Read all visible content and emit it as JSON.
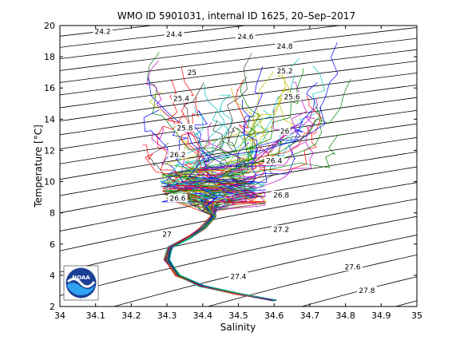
{
  "chart_data": {
    "type": "line",
    "title": "WMO ID 5901031, internal ID 1625, 20–Sep–2017",
    "xlabel": "Salinity",
    "ylabel": "Temperature [°C]",
    "xlim": [
      34,
      35
    ],
    "ylim": [
      2,
      20
    ],
    "xticks": [
      "34",
      "34.1",
      "34.2",
      "34.3",
      "34.4",
      "34.5",
      "34.6",
      "34.7",
      "34.8",
      "34.9",
      "35"
    ],
    "yticks": [
      "2",
      "4",
      "6",
      "8",
      "10",
      "12",
      "14",
      "16",
      "18",
      "20"
    ],
    "grid": false,
    "density_contours": {
      "line_color": "#000000",
      "labels": [
        {
          "text": "24.2",
          "s": 34.12,
          "t": 19.6
        },
        {
          "text": "24.4",
          "s": 34.32,
          "t": 19.4
        },
        {
          "text": "24.6",
          "s": 34.52,
          "t": 19.25
        },
        {
          "text": "24.8",
          "s": 34.63,
          "t": 18.65
        },
        {
          "text": "25",
          "s": 34.37,
          "t": 16.95
        },
        {
          "text": "25.2",
          "s": 34.63,
          "t": 17.05
        },
        {
          "text": "25.4",
          "s": 34.34,
          "t": 15.3
        },
        {
          "text": "25.6",
          "s": 34.65,
          "t": 15.4
        },
        {
          "text": "25.8",
          "s": 34.35,
          "t": 13.4
        },
        {
          "text": "26",
          "s": 34.63,
          "t": 13.2
        },
        {
          "text": "26.2",
          "s": 34.33,
          "t": 11.7
        },
        {
          "text": "26.4",
          "s": 34.6,
          "t": 11.3
        },
        {
          "text": "26.6",
          "s": 34.33,
          "t": 8.9
        },
        {
          "text": "26.8",
          "s": 34.62,
          "t": 9.1
        },
        {
          "text": "27",
          "s": 34.3,
          "t": 6.6
        },
        {
          "text": "27.2",
          "s": 34.62,
          "t": 6.9
        },
        {
          "text": "27.4",
          "s": 34.5,
          "t": 3.9
        },
        {
          "text": "27.6",
          "s": 34.82,
          "t": 4.5
        },
        {
          "text": "27.8",
          "s": 34.86,
          "t": 3.0
        }
      ]
    },
    "profiles": {
      "count": 60,
      "colors": [
        "#0000ff",
        "#008000",
        "#ff0000",
        "#00bfbf",
        "#bf00bf",
        "#bfbf00",
        "#404040"
      ],
      "deep_curve": [
        {
          "s": 34.6,
          "t": 2.4
        },
        {
          "s": 34.5,
          "t": 2.8
        },
        {
          "s": 34.4,
          "t": 3.3
        },
        {
          "s": 34.33,
          "t": 4.0
        },
        {
          "s": 34.3,
          "t": 5.0
        },
        {
          "s": 34.31,
          "t": 5.8
        },
        {
          "s": 34.36,
          "t": 6.4
        },
        {
          "s": 34.4,
          "t": 7.0
        },
        {
          "s": 34.43,
          "t": 7.8
        }
      ]
    }
  },
  "logo": {
    "text": "NOAA"
  }
}
